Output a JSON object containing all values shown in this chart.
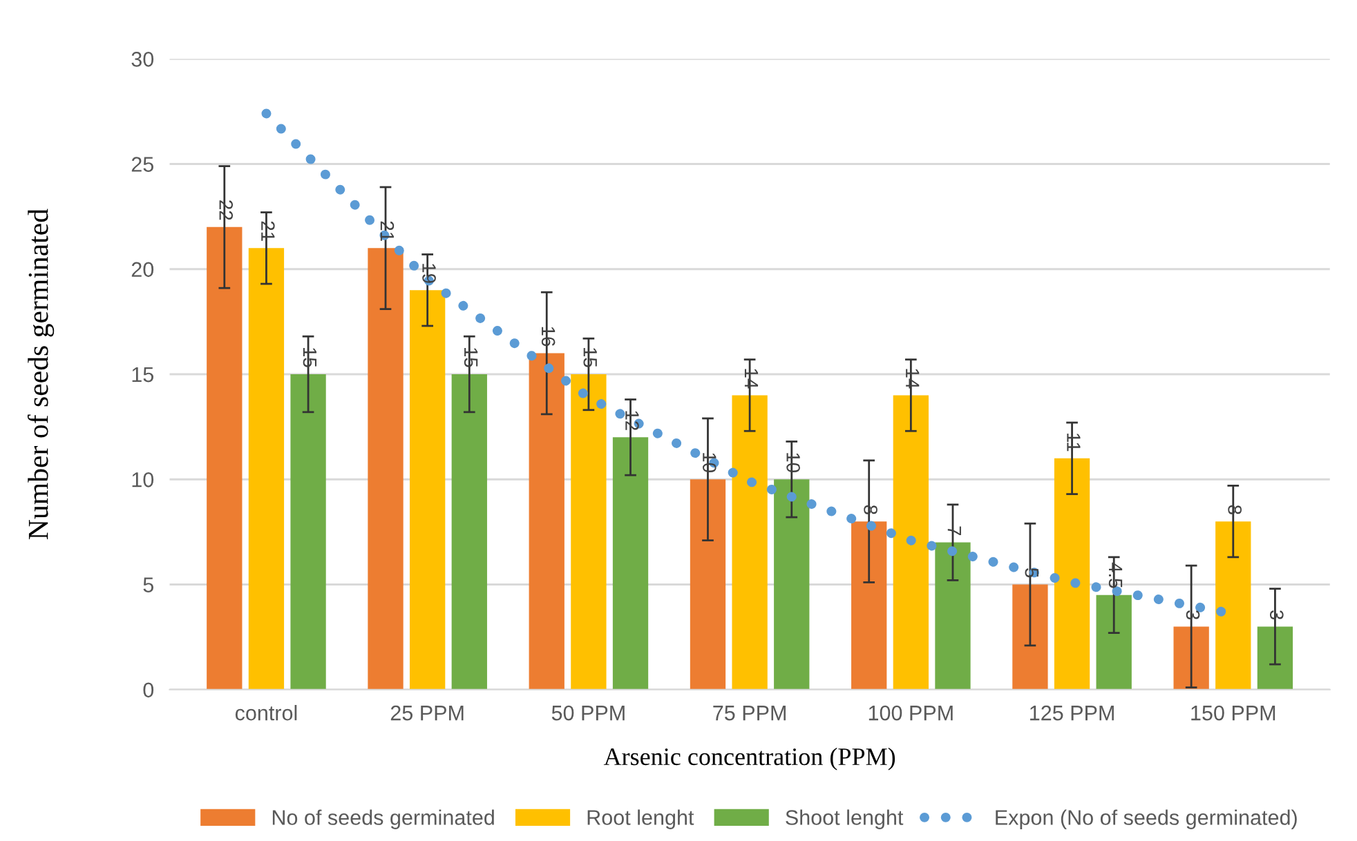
{
  "chart_data": {
    "type": "bar",
    "xlabel": "Arsenic concentration (PPM)",
    "ylabel": "Number of seeds germinated",
    "categories": [
      "control",
      "25 PPM",
      "50 PPM",
      "75 PPM",
      "100 PPM",
      "125 PPM",
      "150 PPM"
    ],
    "series": [
      {
        "name": "No of seeds germinated",
        "color": "#ed7d31",
        "values": [
          22,
          21,
          16,
          10,
          8,
          5,
          3
        ],
        "errors": [
          2.9,
          2.9,
          2.9,
          2.9,
          2.9,
          2.9,
          2.9
        ],
        "value_labels": [
          "22",
          "21",
          "16",
          "10",
          "8",
          "5",
          "3"
        ]
      },
      {
        "name": "Root lenght",
        "color": "#ffc000",
        "values": [
          21,
          19,
          15,
          14,
          14,
          11,
          8
        ],
        "errors": [
          1.7,
          1.7,
          1.7,
          1.7,
          1.7,
          1.7,
          1.7
        ],
        "value_labels": [
          "21",
          "19",
          "15",
          "14",
          "14",
          "11",
          "8"
        ]
      },
      {
        "name": "Shoot lenght",
        "color": "#70ad47",
        "values": [
          15,
          15,
          12,
          10,
          7,
          4.5,
          3
        ],
        "errors": [
          1.8,
          1.8,
          1.8,
          1.8,
          1.8,
          1.8,
          1.8
        ],
        "value_labels": [
          "15",
          "15",
          "12",
          "10",
          "7",
          "4.5",
          "3"
        ]
      },
      {
        "name": "Expon (No of seeds germinated)",
        "type": "line",
        "color": "#5b9bd5",
        "line_style": "dotted",
        "values": [
          27.4,
          19.5,
          13.9,
          9.9,
          7.1,
          5.1,
          3.6
        ]
      }
    ],
    "ylim": [
      0,
      30
    ],
    "yticks": [
      0,
      5,
      10,
      15,
      20,
      25,
      30
    ],
    "grid": "y",
    "legend": "bottom"
  }
}
